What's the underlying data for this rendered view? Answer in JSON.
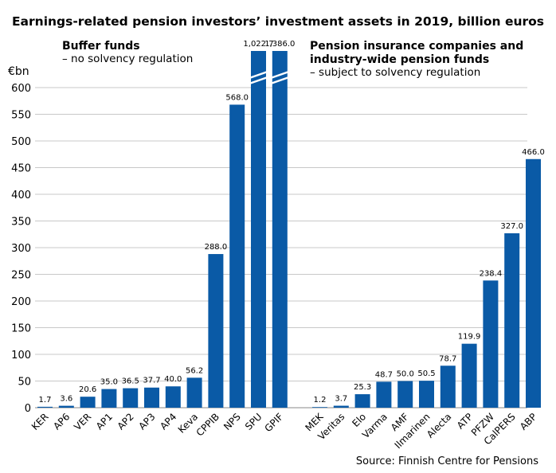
{
  "chart_data": {
    "type": "bar",
    "title": "Earnings-related pension investors’ investment assets in 2019, billion euros",
    "ylabel": "€bn",
    "ylim": [
      0,
      650
    ],
    "yticks": [
      0,
      50,
      100,
      150,
      200,
      250,
      300,
      350,
      400,
      450,
      500,
      550,
      600
    ],
    "grid": true,
    "axis_break": true,
    "color": "#0a5aa6",
    "source": "Source: Finnish Centre for Pensions",
    "groups": [
      {
        "title": "Buffer funds",
        "subtitle_lines": [
          "– no solvency regulation"
        ],
        "categories": [
          "KER",
          "AP6",
          "VER",
          "AP1",
          "AP2",
          "AP3",
          "AP4",
          "Keva",
          "CPPIB",
          "NPS",
          "SPU",
          "GPIF"
        ],
        "values": [
          1.7,
          3.6,
          20.6,
          35.0,
          36.5,
          37.7,
          40.0,
          56.2,
          288.0,
          568.0,
          1022.7,
          1386.0
        ],
        "value_labels": [
          "1.7",
          "3.6",
          "20.6",
          "35.0",
          "36.5",
          "37.7",
          "40.0",
          "56.2",
          "288.0",
          "568.0",
          "1,022.7",
          "1,386.0"
        ]
      },
      {
        "title_lines": [
          "Pension insurance companies and",
          "industry-wide pension funds"
        ],
        "subtitle_lines": [
          "– subject to solvency regulation"
        ],
        "categories": [
          "MEK",
          "Veritas",
          "Elo",
          "Varma",
          "AMF",
          "Ilmarinen",
          "Alecta",
          "ATP",
          "PFZW",
          "CalPERS",
          "ABP"
        ],
        "values": [
          1.2,
          3.7,
          25.3,
          48.7,
          50.0,
          50.5,
          78.7,
          119.9,
          238.4,
          327.0,
          466.0
        ],
        "value_labels": [
          "1.2",
          "3.7",
          "25.3",
          "48.7",
          "50.0",
          "50.5",
          "78.7",
          "119.9",
          "238.4",
          "327.0",
          "466.0"
        ]
      }
    ]
  }
}
